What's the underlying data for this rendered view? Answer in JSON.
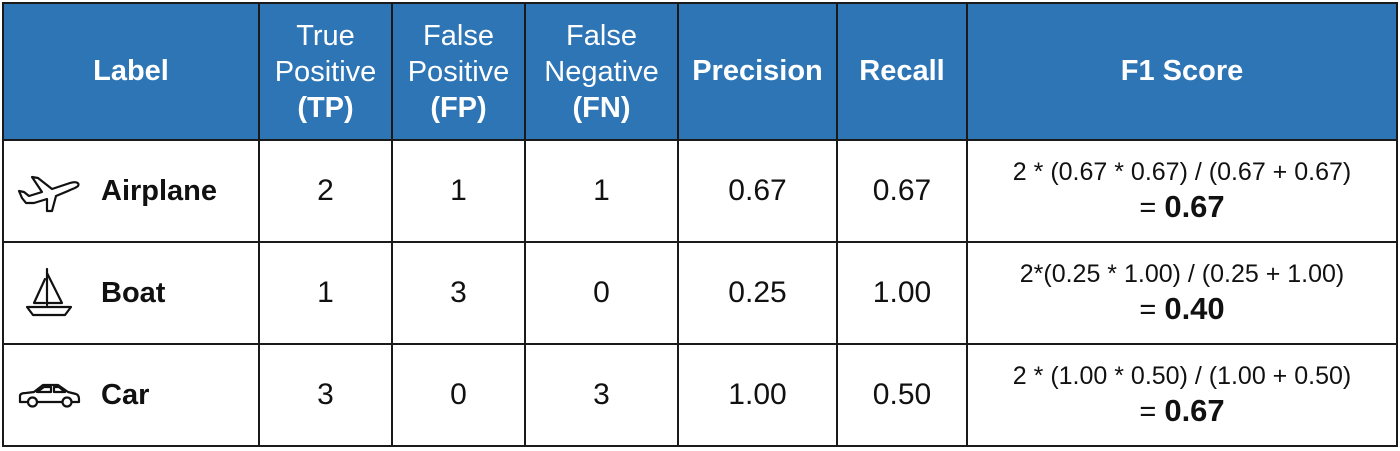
{
  "colors": {
    "header_bg": "#2e75b6",
    "header_text": "#ffffff",
    "border": "#1a1a1a"
  },
  "header": {
    "label": "Label",
    "tp": {
      "line1": "True",
      "line2": "Positive",
      "line3": "(TP)"
    },
    "fp": {
      "line1": "False",
      "line2": "Positive",
      "line3": "(FP)"
    },
    "fn": {
      "line1": "False",
      "line2": "Negative",
      "line3": "(FN)"
    },
    "precision": "Precision",
    "recall": "Recall",
    "f1": "F1 Score"
  },
  "rows": [
    {
      "icon": "airplane-icon",
      "label": "Airplane",
      "tp": "2",
      "fp": "1",
      "fn": "1",
      "precision": "0.67",
      "recall": "0.67",
      "f1_formula": "2 * (0.67 * 0.67) / (0.67 + 0.67)",
      "f1_equals": "= ",
      "f1_value": "0.67"
    },
    {
      "icon": "sailboat-icon",
      "label": "Boat",
      "tp": "1",
      "fp": "3",
      "fn": "0",
      "precision": "0.25",
      "recall": "1.00",
      "f1_formula": "2*(0.25 * 1.00) / (0.25 + 1.00)",
      "f1_equals": "= ",
      "f1_value": "0.40"
    },
    {
      "icon": "car-icon",
      "label": "Car",
      "tp": "3",
      "fp": "0",
      "fn": "3",
      "precision": "1.00",
      "recall": "0.50",
      "f1_formula": "2 * (1.00 * 0.50) / (1.00 + 0.50)",
      "f1_equals": "= ",
      "f1_value": "0.67"
    }
  ]
}
